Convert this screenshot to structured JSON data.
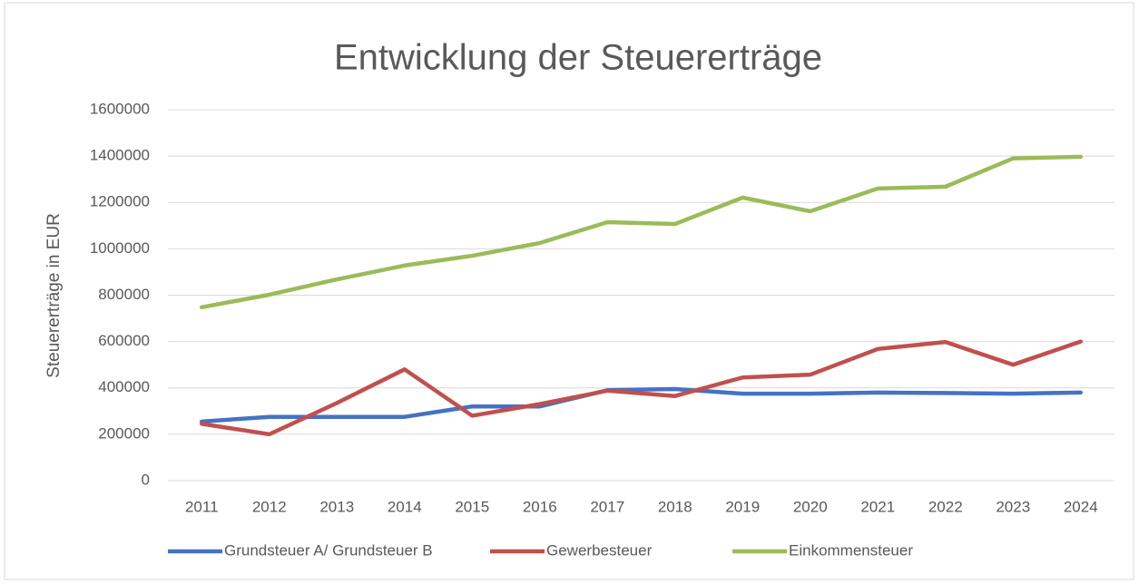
{
  "chart_data": {
    "type": "line",
    "title": "Entwicklung der Steuererträge",
    "y_label": "Steuererträge in EUR",
    "categories": [
      "2011",
      "2012",
      "2013",
      "2014",
      "2015",
      "2016",
      "2017",
      "2018",
      "2019",
      "2020",
      "2021",
      "2022",
      "2023",
      "2024"
    ],
    "series": [
      {
        "name": "Grundsteuer A/ Grundsteuer B",
        "color": "#4472c4",
        "values": [
          255000,
          275000,
          275000,
          275000,
          320000,
          320000,
          390000,
          395000,
          375000,
          375000,
          380000,
          378000,
          375000,
          380000
        ]
      },
      {
        "name": "Gewerbesteuer",
        "color": "#c0504d",
        "values": [
          245000,
          200000,
          335000,
          480000,
          280000,
          330000,
          388000,
          365000,
          445000,
          457000,
          568000,
          598000,
          500000,
          600000
        ]
      },
      {
        "name": "Einkommensteuer",
        "color": "#9bbb59",
        "values": [
          748000,
          802000,
          868000,
          928000,
          970000,
          1025000,
          1115000,
          1107000,
          1221000,
          1162000,
          1260000,
          1268000,
          1390000,
          1397000
        ]
      }
    ],
    "ylim": [
      0,
      1600000
    ],
    "yticks": [
      0,
      200000,
      400000,
      600000,
      800000,
      1000000,
      1200000,
      1400000,
      1600000
    ],
    "grid": true,
    "legend": "bottom"
  }
}
